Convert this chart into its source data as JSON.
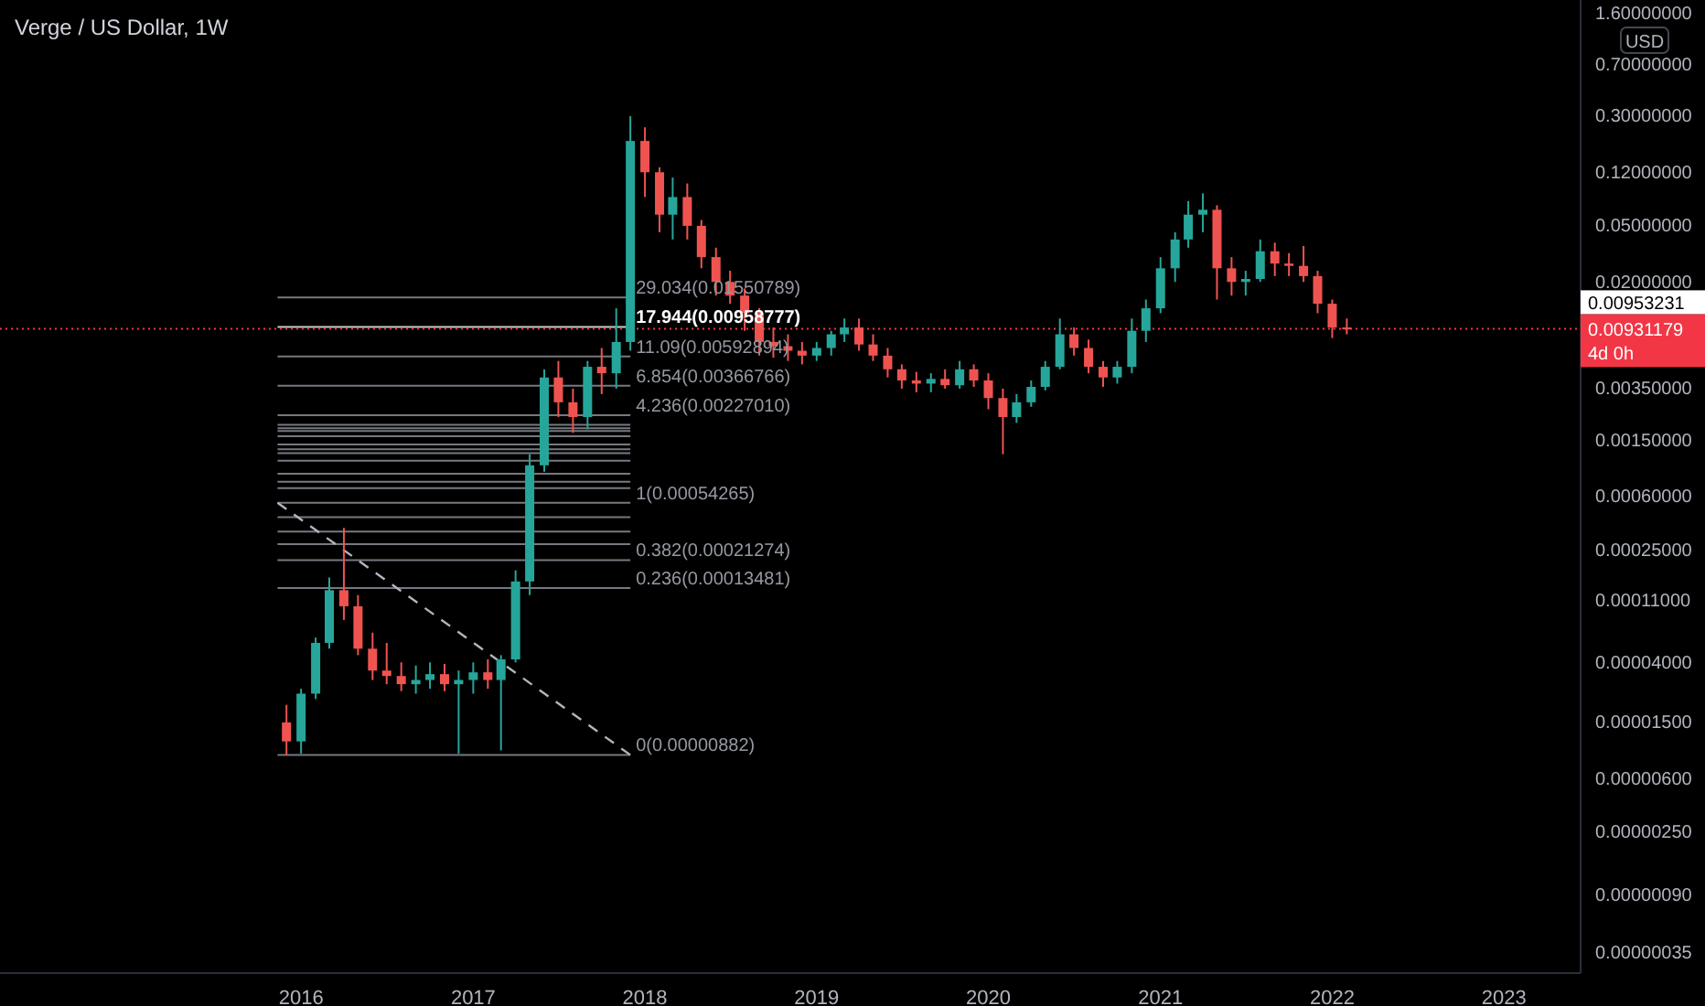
{
  "chart_data": {
    "type": "candlestick",
    "title": "Verge / US Dollar, 1W",
    "x": [
      "2015-12",
      "2016-01",
      "2016-02",
      "2016-03",
      "2016-04",
      "2016-05",
      "2016-06",
      "2016-07",
      "2016-08",
      "2016-09",
      "2016-10",
      "2016-11",
      "2016-12",
      "2017-01",
      "2017-02",
      "2017-03",
      "2017-04",
      "2017-05",
      "2017-06",
      "2017-07",
      "2017-08",
      "2017-09",
      "2017-10",
      "2017-11",
      "2017-12",
      "2018-01",
      "2018-02",
      "2018-03",
      "2018-04",
      "2018-05",
      "2018-06",
      "2018-07",
      "2018-08",
      "2018-09",
      "2018-10",
      "2018-11",
      "2018-12",
      "2019-01",
      "2019-02",
      "2019-03",
      "2019-04",
      "2019-05",
      "2019-06",
      "2019-07",
      "2019-08",
      "2019-09",
      "2019-10",
      "2019-11",
      "2019-12",
      "2020-01",
      "2020-02",
      "2020-03",
      "2020-04",
      "2020-05",
      "2020-06",
      "2020-07",
      "2020-08",
      "2020-09",
      "2020-10",
      "2020-11",
      "2020-12",
      "2021-01",
      "2021-02",
      "2021-03",
      "2021-04",
      "2021-05",
      "2021-06",
      "2021-07",
      "2021-08",
      "2021-09",
      "2021-10",
      "2021-11",
      "2021-12",
      "2022-01",
      "2022-02"
    ],
    "ohlc": [
      [
        1.5e-05,
        2e-05,
        8.8e-06,
        1.1e-05
      ],
      [
        1.1e-05,
        2.6e-05,
        9e-06,
        2.4e-05
      ],
      [
        2.4e-05,
        6e-05,
        2.2e-05,
        5.5e-05
      ],
      [
        5.5e-05,
        0.00016,
        5e-05,
        0.00013
      ],
      [
        0.00013,
        0.00036,
        8e-05,
        0.0001
      ],
      [
        0.0001,
        0.00012,
        4.5e-05,
        5e-05
      ],
      [
        5e-05,
        6.5e-05,
        3e-05,
        3.5e-05
      ],
      [
        3.5e-05,
        5.5e-05,
        2.8e-05,
        3.2e-05
      ],
      [
        3.2e-05,
        4e-05,
        2.5e-05,
        2.8e-05
      ],
      [
        2.8e-05,
        3.8e-05,
        2.4e-05,
        3e-05
      ],
      [
        3e-05,
        4e-05,
        2.6e-05,
        3.3e-05
      ],
      [
        3.3e-05,
        3.9e-05,
        2.5e-05,
        2.8e-05
      ],
      [
        2.8e-05,
        3.5e-05,
        9e-06,
        3e-05
      ],
      [
        3e-05,
        4e-05,
        2.4e-05,
        3.4e-05
      ],
      [
        3.4e-05,
        4.2e-05,
        2.6e-05,
        3e-05
      ],
      [
        3e-05,
        4.5e-05,
        9.5e-06,
        4.2e-05
      ],
      [
        4.2e-05,
        0.00018,
        4e-05,
        0.00015
      ],
      [
        0.00015,
        0.0012,
        0.00012,
        0.001
      ],
      [
        0.001,
        0.0048,
        0.0009,
        0.0042
      ],
      [
        0.0042,
        0.0055,
        0.0022,
        0.0028
      ],
      [
        0.0028,
        0.0035,
        0.0017,
        0.0022
      ],
      [
        0.0022,
        0.0055,
        0.0018,
        0.005
      ],
      [
        0.005,
        0.0068,
        0.0032,
        0.0045
      ],
      [
        0.0045,
        0.013,
        0.0035,
        0.0075
      ],
      [
        0.0075,
        0.3,
        0.0065,
        0.2
      ],
      [
        0.2,
        0.25,
        0.08,
        0.12
      ],
      [
        0.12,
        0.13,
        0.045,
        0.06
      ],
      [
        0.06,
        0.11,
        0.04,
        0.08
      ],
      [
        0.08,
        0.1,
        0.04,
        0.05
      ],
      [
        0.05,
        0.055,
        0.025,
        0.03
      ],
      [
        0.03,
        0.035,
        0.016,
        0.02
      ],
      [
        0.02,
        0.024,
        0.014,
        0.016
      ],
      [
        0.016,
        0.018,
        0.009,
        0.012
      ],
      [
        0.012,
        0.013,
        0.006,
        0.0075
      ],
      [
        0.0075,
        0.0095,
        0.0058,
        0.007
      ],
      [
        0.007,
        0.0085,
        0.0055,
        0.0065
      ],
      [
        0.0065,
        0.0075,
        0.0052,
        0.006
      ],
      [
        0.006,
        0.0075,
        0.0055,
        0.0068
      ],
      [
        0.0068,
        0.009,
        0.006,
        0.0085
      ],
      [
        0.0085,
        0.011,
        0.0075,
        0.0095
      ],
      [
        0.0095,
        0.011,
        0.0065,
        0.0072
      ],
      [
        0.0072,
        0.0085,
        0.0055,
        0.006
      ],
      [
        0.006,
        0.0068,
        0.0042,
        0.0048
      ],
      [
        0.0048,
        0.0052,
        0.0035,
        0.004
      ],
      [
        0.004,
        0.0046,
        0.0033,
        0.0038
      ],
      [
        0.0038,
        0.0045,
        0.0033,
        0.0041
      ],
      [
        0.0041,
        0.0048,
        0.0035,
        0.0037
      ],
      [
        0.0037,
        0.0055,
        0.0035,
        0.0048
      ],
      [
        0.0048,
        0.0052,
        0.0036,
        0.004
      ],
      [
        0.004,
        0.0045,
        0.0025,
        0.003
      ],
      [
        0.003,
        0.0035,
        0.0012,
        0.0022
      ],
      [
        0.0022,
        0.0032,
        0.002,
        0.0028
      ],
      [
        0.0028,
        0.004,
        0.0026,
        0.0036
      ],
      [
        0.0036,
        0.0055,
        0.0034,
        0.005
      ],
      [
        0.005,
        0.011,
        0.0048,
        0.0085
      ],
      [
        0.0085,
        0.0095,
        0.006,
        0.0068
      ],
      [
        0.0068,
        0.0078,
        0.0045,
        0.005
      ],
      [
        0.005,
        0.0055,
        0.0036,
        0.0042
      ],
      [
        0.0042,
        0.0055,
        0.0038,
        0.005
      ],
      [
        0.005,
        0.011,
        0.0045,
        0.009
      ],
      [
        0.009,
        0.015,
        0.0075,
        0.013
      ],
      [
        0.013,
        0.03,
        0.012,
        0.025
      ],
      [
        0.025,
        0.045,
        0.02,
        0.04
      ],
      [
        0.04,
        0.075,
        0.035,
        0.06
      ],
      [
        0.06,
        0.085,
        0.045,
        0.065
      ],
      [
        0.065,
        0.07,
        0.015,
        0.025
      ],
      [
        0.025,
        0.03,
        0.016,
        0.02
      ],
      [
        0.02,
        0.024,
        0.016,
        0.021
      ],
      [
        0.021,
        0.04,
        0.02,
        0.033
      ],
      [
        0.033,
        0.038,
        0.022,
        0.027
      ],
      [
        0.027,
        0.032,
        0.022,
        0.026
      ],
      [
        0.026,
        0.036,
        0.02,
        0.022
      ],
      [
        0.022,
        0.024,
        0.012,
        0.014
      ],
      [
        0.014,
        0.015,
        0.008,
        0.0095
      ],
      [
        0.0095,
        0.011,
        0.0085,
        0.0093
      ]
    ],
    "colors": [
      "#ef5350",
      "#26a69a",
      "#26a69a",
      "#26a69a",
      "#ef5350",
      "#ef5350",
      "#ef5350",
      "#ef5350",
      "#ef5350",
      "#26a69a",
      "#26a69a",
      "#ef5350",
      "#26a69a",
      "#26a69a",
      "#ef5350",
      "#26a69a",
      "#26a69a",
      "#26a69a",
      "#26a69a",
      "#ef5350",
      "#ef5350",
      "#26a69a",
      "#ef5350",
      "#26a69a",
      "#26a69a",
      "#ef5350",
      "#ef5350",
      "#26a69a",
      "#ef5350",
      "#ef5350",
      "#ef5350",
      "#ef5350",
      "#ef5350",
      "#ef5350",
      "#ef5350",
      "#ef5350",
      "#ef5350",
      "#26a69a",
      "#26a69a",
      "#26a69a",
      "#ef5350",
      "#ef5350",
      "#ef5350",
      "#ef5350",
      "#ef5350",
      "#26a69a",
      "#ef5350",
      "#26a69a",
      "#ef5350",
      "#ef5350",
      "#ef5350",
      "#26a69a",
      "#26a69a",
      "#26a69a",
      "#26a69a",
      "#ef5350",
      "#ef5350",
      "#ef5350",
      "#26a69a",
      "#26a69a",
      "#26a69a",
      "#26a69a",
      "#26a69a",
      "#26a69a",
      "#26a69a",
      "#ef5350",
      "#ef5350",
      "#26a69a",
      "#26a69a",
      "#ef5350",
      "#ef5350",
      "#ef5350",
      "#ef5350",
      "#ef5350",
      "#ef5350"
    ],
    "series": [
      {
        "type": "line",
        "x": [
          "2015-11-12",
          "2017-12-01"
        ],
        "values": [
          0.00054265,
          8.82e-06
        ],
        "color": "#b2b5be",
        "line_style": "dashed"
      }
    ],
    "xlim": [
      "2014-04-01",
      "2023-06-13"
    ],
    "xticks": [
      {
        "value": "2016",
        "label": "2016"
      },
      {
        "value": "2017",
        "label": "2017"
      },
      {
        "value": "2018",
        "label": "2018"
      },
      {
        "value": "2019",
        "label": "2019"
      },
      {
        "value": "2020",
        "label": "2020"
      },
      {
        "value": "2021",
        "label": "2021"
      },
      {
        "value": "2022",
        "label": "2022"
      },
      {
        "value": "2023",
        "label": "2023"
      }
    ],
    "log": true,
    "ylim": [
      2.5e-07,
      2.0
    ],
    "yticks": [
      {
        "value": 1.6,
        "label": "1.60000000"
      },
      {
        "value": 0.7,
        "label": "0.70000000"
      },
      {
        "value": 0.3,
        "label": "0.30000000"
      },
      {
        "value": 0.12,
        "label": "0.12000000"
      },
      {
        "value": 0.05,
        "label": "0.05000000"
      },
      {
        "value": 0.02,
        "label": "0.02000000"
      },
      {
        "value": 0.0035,
        "label": "0.00350000"
      },
      {
        "value": 0.0015,
        "label": "0.00150000"
      },
      {
        "value": 0.0006,
        "label": "0.00060000"
      },
      {
        "value": 0.00025,
        "label": "0.00025000"
      },
      {
        "value": 0.00011,
        "label": "0.00011000"
      },
      {
        "value": 4e-05,
        "label": "0.00004000"
      },
      {
        "value": 1.5e-05,
        "label": "0.00001500"
      },
      {
        "value": 6e-06,
        "label": "0.00000600"
      },
      {
        "value": 2.5e-06,
        "label": "0.00000250"
      },
      {
        "value": 9e-07,
        "label": "0.00000090"
      },
      {
        "value": 3.5e-07,
        "label": "0.00000035"
      }
    ],
    "ref_lines": [
      {
        "axis": "y",
        "value": 0.01550789,
        "label": "29.034(0.01550789)",
        "color": "#9598a1"
      },
      {
        "axis": "y",
        "value": 0.00958777,
        "label": "17.944(0.00958777)",
        "color": "#ffffff"
      },
      {
        "axis": "y",
        "value": 0.00592894,
        "label": "11.09(0.00592894)",
        "color": "#9598a1"
      },
      {
        "axis": "y",
        "value": 0.00366766,
        "label": "6.854(0.00366766)",
        "color": "#9598a1"
      },
      {
        "axis": "y",
        "value": 0.0022701,
        "label": "4.236(0.00227010)",
        "color": "#9598a1"
      },
      {
        "axis": "y",
        "value": 0.00194022,
        "color": "#9598a1"
      },
      {
        "axis": "y",
        "value": 0.00183132,
        "color": "#9598a1"
      },
      {
        "axis": "y",
        "value": 0.00175551,
        "color": "#9598a1"
      },
      {
        "axis": "y",
        "value": 0.00161031,
        "color": "#9598a1"
      },
      {
        "axis": "y",
        "value": 0.00140639,
        "color": "#9598a1"
      },
      {
        "axis": "y",
        "value": 0.00129748,
        "color": "#9598a1"
      },
      {
        "axis": "y",
        "value": 0.00122168,
        "color": "#9598a1"
      },
      {
        "axis": "y",
        "value": 0.00107648,
        "color": "#9598a1"
      },
      {
        "axis": "y",
        "value": 0.00087255,
        "color": "#9598a1"
      },
      {
        "axis": "y",
        "value": 0.00076366,
        "color": "#9598a1"
      },
      {
        "axis": "y",
        "value": 0.00068785,
        "color": "#9598a1"
      },
      {
        "axis": "y",
        "value": 0.00054265,
        "label": "1(0.00054265)",
        "color": "#9598a1"
      },
      {
        "axis": "y",
        "value": 0.00042841,
        "color": "#9598a1"
      },
      {
        "axis": "y",
        "value": 0.00033873,
        "color": "#9598a1"
      },
      {
        "axis": "y",
        "value": 0.00027574,
        "color": "#9598a1"
      },
      {
        "axis": "y",
        "value": 0.00021274,
        "label": "0.382(0.00021274)",
        "color": "#9598a1"
      },
      {
        "axis": "y",
        "value": 0.00013481,
        "label": "0.236(0.00013481)",
        "color": "#9598a1"
      },
      {
        "axis": "y",
        "value": 8.82e-06,
        "label": "0(0.00000882)",
        "color": "#9598a1"
      },
      {
        "axis": "y",
        "value": 0.00931179,
        "label": "0.00931179",
        "color": "#f23645",
        "line_style": "dotted"
      }
    ],
    "annotations": [
      "USD",
      "4d 0h",
      "0.00953231"
    ]
  }
}
